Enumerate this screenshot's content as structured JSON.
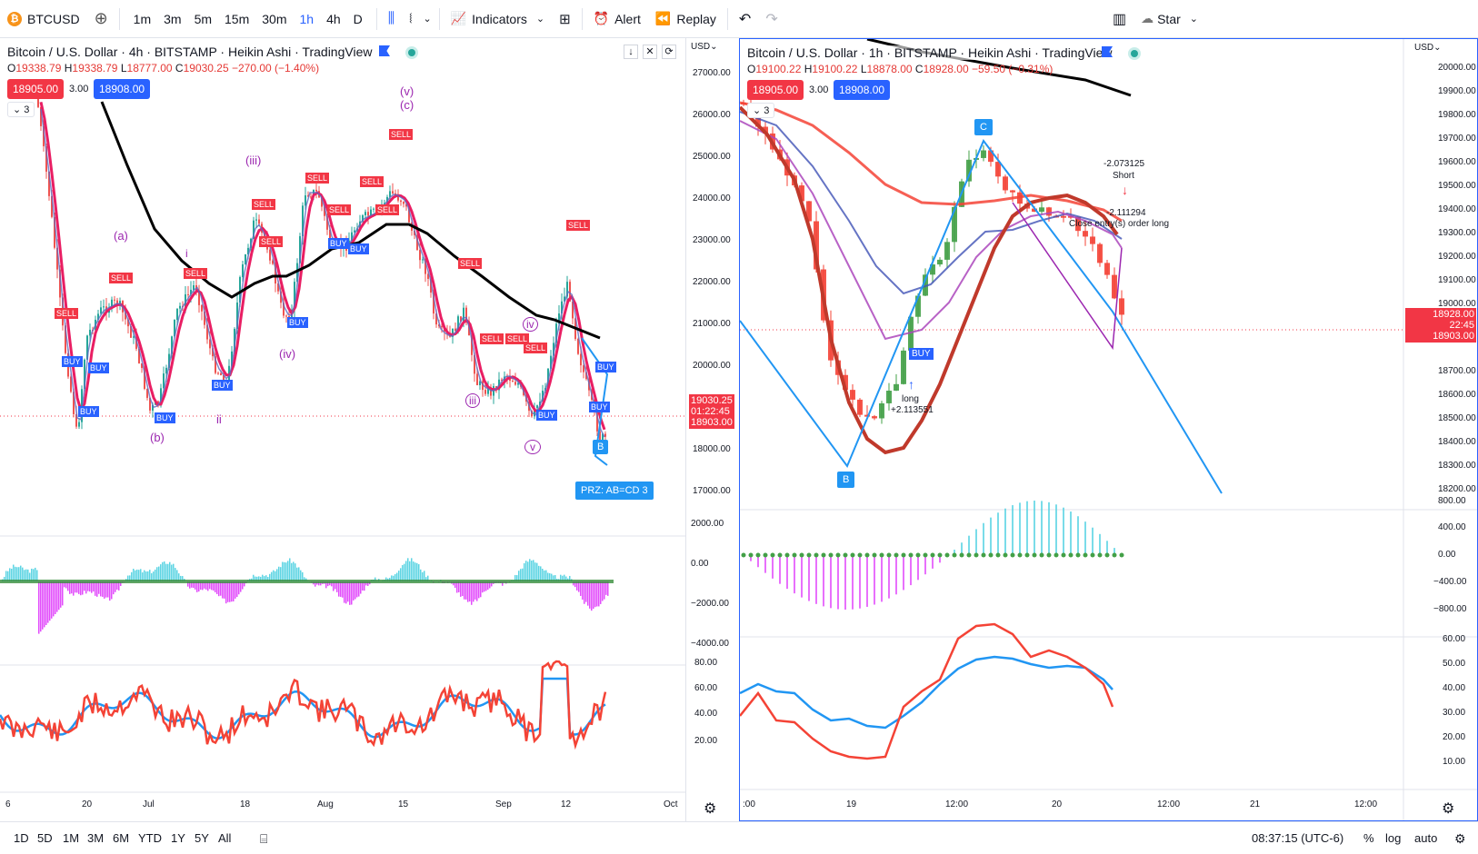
{
  "topbar": {
    "symbol": "BTCUSD",
    "intervals": [
      "1m",
      "3m",
      "5m",
      "15m",
      "30m",
      "1h",
      "4h",
      "D"
    ],
    "active_interval": "1h",
    "indicators_label": "Indicators",
    "alert_label": "Alert",
    "replay_label": "Replay",
    "star_label": "Star"
  },
  "left_chart": {
    "title": "Bitcoin / U.S. Dollar · 4h · BITSTAMP · Heikin Ashi · TradingView",
    "ohlc": {
      "o": "19338.79",
      "h": "19338.79",
      "l": "18777.00",
      "c": "19030.25",
      "chg": "−270.00 (−1.40%)"
    },
    "bid": "18905.00",
    "spread": "3.00",
    "ask": "18908.00",
    "indicators_count": "3",
    "axis_currency": "USD",
    "price_ticks": [
      "27000.00",
      "26000.00",
      "25000.00",
      "24000.00",
      "23000.00",
      "22000.00",
      "21000.00",
      "20000.00",
      "18000.00",
      "17000.00"
    ],
    "price_labels": [
      "19030.25",
      "01:22:45",
      "18903.00"
    ],
    "macd_ticks": [
      "2000.00",
      "0.00",
      "−2000.00",
      "−4000.00"
    ],
    "rsi_ticks": [
      "80.00",
      "60.00",
      "40.00",
      "20.00"
    ],
    "time_ticks": [
      "6",
      "20",
      "Jul",
      "18",
      "Aug",
      "15",
      "Sep",
      "12",
      "Oct"
    ],
    "wave_labels": [
      "(a)",
      "(b)",
      "(iii)",
      "(iv)",
      "(v)",
      "(c)",
      "i",
      "ii",
      "iii",
      "iv",
      "v"
    ],
    "prz_label": "PRZ: AB=CD 3",
    "b_label": "B"
  },
  "right_chart": {
    "title": "Bitcoin / U.S. Dollar · 1h · BITSTAMP · Heikin Ashi · TradingView",
    "ohlc": {
      "o": "19100.22",
      "h": "19100.22",
      "l": "18878.00",
      "c": "18928.00",
      "chg": "−59.50 (−0.31%)"
    },
    "bid": "18905.00",
    "spread": "3.00",
    "ask": "18908.00",
    "indicators_count": "3",
    "axis_currency": "USD",
    "price_ticks": [
      "20000.00",
      "19900.00",
      "19800.00",
      "19700.00",
      "19600.00",
      "19500.00",
      "19400.00",
      "19300.00",
      "19200.00",
      "19100.00",
      "19000.00",
      "18700.00",
      "18600.00",
      "18500.00",
      "18400.00",
      "18300.00",
      "18200.00"
    ],
    "price_labels": [
      "18928.00",
      "22:45",
      "18903.00"
    ],
    "macd_ticks": [
      "800.00",
      "400.00",
      "0.00",
      "−400.00",
      "−800.00"
    ],
    "rsi_ticks": [
      "60.00",
      "50.00",
      "40.00",
      "30.00",
      "20.00",
      "10.00"
    ],
    "time_ticks": [
      ":00",
      "19",
      "12:00",
      "20",
      "12:00",
      "21",
      "12:00"
    ],
    "annotations": {
      "short_value": "-2.073125",
      "short_label": "Short",
      "close_value": "-2.111294",
      "close_label": "Close entry(s) order long",
      "long_label": "long",
      "long_value": "+2.113551",
      "c_label": "C",
      "b_label": "B",
      "buy_label": "BUY"
    }
  },
  "bottombar": {
    "ranges": [
      "1D",
      "5D",
      "1M",
      "3M",
      "6M",
      "YTD",
      "1Y",
      "5Y",
      "All"
    ],
    "clock": "08:37:15 (UTC-6)",
    "percent": "%",
    "log": "log",
    "auto": "auto"
  },
  "colors": {
    "up": "#26a69a",
    "down": "#ef5350",
    "ma_black": "#000000",
    "ma_red": "#e91e63",
    "pattern_blue": "#2196f3",
    "wave_purple": "#9c27b0"
  }
}
